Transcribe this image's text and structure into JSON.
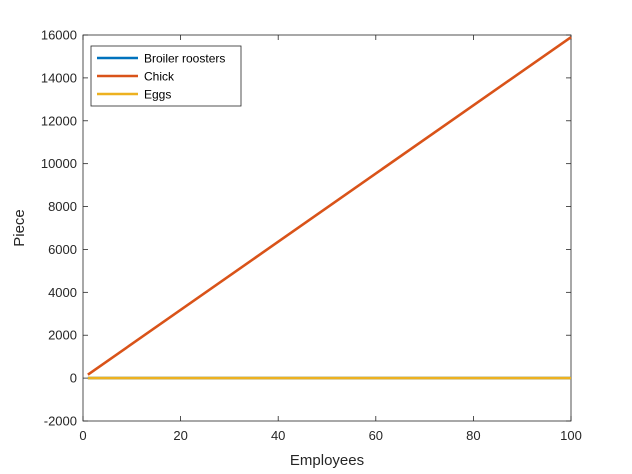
{
  "chart_data": {
    "type": "line",
    "title": "",
    "xlabel": "Employees",
    "ylabel": "Piece",
    "xlim": [
      0,
      100
    ],
    "ylim": [
      -2000,
      16000
    ],
    "xticks": [
      0,
      20,
      40,
      60,
      80,
      100
    ],
    "yticks": [
      -2000,
      0,
      2000,
      4000,
      6000,
      8000,
      10000,
      12000,
      14000,
      16000
    ],
    "grid": false,
    "legend_position": "top-left",
    "series": [
      {
        "name": "Broiler roosters",
        "color": "#0072BD",
        "x": [
          1,
          100
        ],
        "y": [
          0,
          0
        ]
      },
      {
        "name": "Chick",
        "color": "#D95319",
        "x": [
          1,
          100
        ],
        "y": [
          160,
          15900
        ]
      },
      {
        "name": "Eggs",
        "color": "#EDB120",
        "x": [
          1,
          100
        ],
        "y": [
          0,
          0
        ]
      }
    ]
  }
}
